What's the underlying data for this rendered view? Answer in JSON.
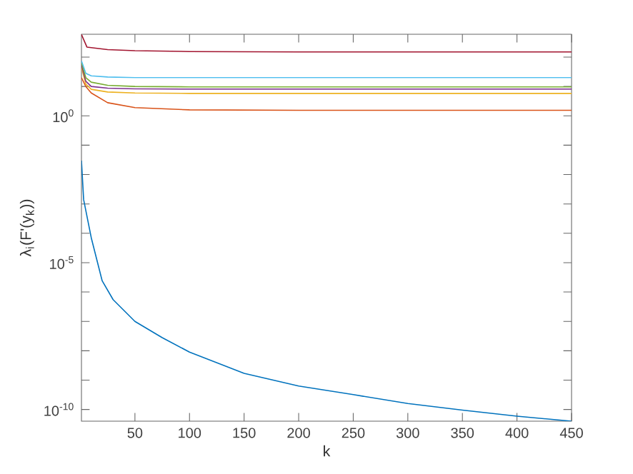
{
  "chart_data": {
    "type": "line",
    "xlabel": "k",
    "ylabel": "λ$_{i}$(F'(y$_{k}$))",
    "log": "y",
    "grid": false,
    "marker": "none",
    "line_style": "solid",
    "xlim": [
      1,
      450
    ],
    "xticks": [
      50,
      100,
      150,
      200,
      250,
      300,
      350,
      400,
      450
    ],
    "ylim": [
      4e-11,
      600
    ],
    "yticks": [
      {
        "value": 1e-10,
        "label": "10$^{-10}$"
      },
      {
        "value": 1e-09,
        "label": null
      },
      {
        "value": 1e-08,
        "label": null
      },
      {
        "value": 1e-07,
        "label": null
      },
      {
        "value": 1e-06,
        "label": null
      },
      {
        "value": 1e-05,
        "label": "10$^{-5}$"
      },
      {
        "value": 0.0001,
        "label": null
      },
      {
        "value": 0.001,
        "label": null
      },
      {
        "value": 0.01,
        "label": null
      },
      {
        "value": 0.1,
        "label": null
      },
      {
        "value": 1,
        "label": "10$^{0}$"
      },
      {
        "value": 10,
        "label": null
      },
      {
        "value": 100,
        "label": null
      }
    ],
    "series": [
      {
        "color": "#0072bd",
        "x": [
          1,
          3,
          10,
          20,
          30,
          50,
          75,
          100,
          150,
          200,
          250,
          300,
          350,
          400,
          450
        ],
        "values": [
          0.03,
          0.0014,
          7e-05,
          2.4e-06,
          5.5e-07,
          1e-07,
          2.8e-08,
          9e-09,
          1.7e-09,
          6.3e-10,
          3.2e-10,
          1.6e-10,
          9.5e-11,
          5.9e-11,
          4e-11
        ]
      },
      {
        "color": "#d95319",
        "x": [
          1,
          5,
          10,
          25,
          50,
          100,
          200,
          450
        ],
        "values": [
          20,
          10,
          6,
          2.8,
          1.9,
          1.6,
          1.55,
          1.55
        ]
      },
      {
        "color": "#edb120",
        "x": [
          1,
          5,
          10,
          25,
          50,
          100,
          450
        ],
        "values": [
          45,
          12,
          8,
          6.5,
          6,
          5.8,
          5.8
        ]
      },
      {
        "color": "#7e2f8e",
        "x": [
          1,
          5,
          10,
          25,
          50,
          100,
          450
        ],
        "values": [
          55,
          15,
          10,
          8.8,
          8.3,
          8.1,
          8.1
        ]
      },
      {
        "color": "#77ac30",
        "x": [
          1,
          5,
          10,
          25,
          50,
          100,
          450
        ],
        "values": [
          65,
          20,
          14,
          11,
          10,
          9.7,
          9.7
        ]
      },
      {
        "color": "#4dbeee",
        "x": [
          1,
          5,
          10,
          25,
          50,
          100,
          450
        ],
        "values": [
          75,
          28,
          23,
          21,
          20,
          20,
          20
        ]
      },
      {
        "color": "#a2142f",
        "x": [
          1,
          6,
          25,
          50,
          100,
          200,
          450
        ],
        "values": [
          590,
          220,
          180,
          165,
          155,
          150,
          150
        ]
      }
    ]
  }
}
